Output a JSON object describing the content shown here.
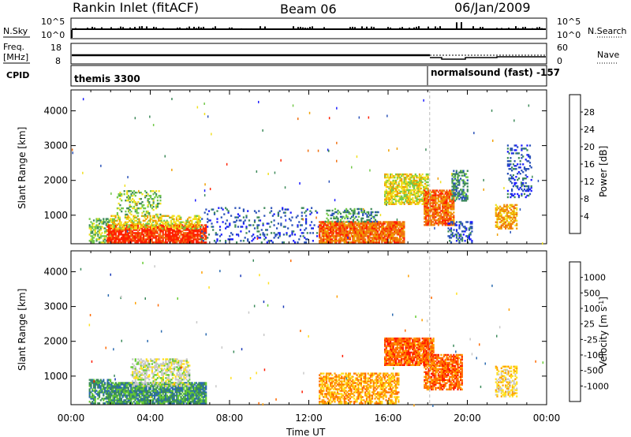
{
  "header": {
    "station": "Rankin Inlet (fitACF)",
    "beam": "Beam 06",
    "date": "06/Jan/2009"
  },
  "status_panels": {
    "nsky_label": "N.Sky",
    "nsearch_label": "N.Search",
    "count_top_tick": "10^5",
    "count_bottom_tick": "10^0",
    "freq_label_1": "Freq.",
    "freq_label_2": "[MHz]",
    "freq_top_tick": "18",
    "freq_bottom_tick": "8",
    "nave_label": "Nave",
    "nave_top_tick": "60",
    "nave_bottom_tick": "0",
    "cpid_label": "CPID",
    "cpid_segments": [
      {
        "name": "themis 3300",
        "start_hour": 0
      },
      {
        "name": "normalsound (fast) -157",
        "start_hour": 18.1
      }
    ]
  },
  "chart_data": [
    {
      "type": "heatmap",
      "panel": "power",
      "xlabel": "Time UT",
      "ylabel": "Slant Range [km]",
      "x_range_hours": [
        0,
        24
      ],
      "ylim": [
        180,
        4600
      ],
      "y_ticks": [
        1000,
        2000,
        3000,
        4000
      ],
      "colorbar_label": "Power [dB]",
      "colorbar_ticks": [
        "4",
        "8",
        "12",
        "16",
        "20",
        "24",
        "28"
      ],
      "colorbar_colors": [
        "#1a1aff",
        "#2a52b8",
        "#3e8a5a",
        "#73c94a",
        "#f0e020",
        "#f0a000",
        "#f07010",
        "#ff2000"
      ],
      "regions": [
        {
          "t0": 0.9,
          "t1": 2.0,
          "r0": 200,
          "r1": 900,
          "level": 3,
          "density": 0.55
        },
        {
          "t0": 1.8,
          "t1": 6.8,
          "r0": 200,
          "r1": 700,
          "level": 7,
          "density": 0.85
        },
        {
          "t0": 2.0,
          "t1": 6.5,
          "r0": 600,
          "r1": 1000,
          "level": 4,
          "density": 0.55
        },
        {
          "t0": 2.3,
          "t1": 4.5,
          "r0": 1000,
          "r1": 1700,
          "level": 3,
          "density": 0.3
        },
        {
          "t0": 6.5,
          "t1": 12.5,
          "r0": 200,
          "r1": 1200,
          "level": 1,
          "density": 0.12
        },
        {
          "t0": 12.5,
          "t1": 16.8,
          "r0": 200,
          "r1": 800,
          "level": 6,
          "density": 0.85
        },
        {
          "t0": 12.8,
          "t1": 15.5,
          "r0": 800,
          "r1": 1200,
          "level": 2,
          "density": 0.4
        },
        {
          "t0": 15.8,
          "t1": 18.0,
          "r0": 1300,
          "r1": 2200,
          "level": 4,
          "density": 0.7
        },
        {
          "t0": 17.8,
          "t1": 19.3,
          "r0": 700,
          "r1": 1700,
          "level": 6,
          "density": 0.8
        },
        {
          "t0": 19.2,
          "t1": 20.0,
          "r0": 1400,
          "r1": 2300,
          "level": 2,
          "density": 0.5
        },
        {
          "t0": 19.0,
          "t1": 20.2,
          "r0": 200,
          "r1": 800,
          "level": 1,
          "density": 0.35
        },
        {
          "t0": 21.4,
          "t1": 22.5,
          "r0": 600,
          "r1": 1300,
          "level": 5,
          "density": 0.6
        },
        {
          "t0": 22.0,
          "t1": 23.2,
          "r0": 1500,
          "r1": 3000,
          "level": 1,
          "density": 0.25
        }
      ]
    },
    {
      "type": "heatmap",
      "panel": "velocity",
      "xlabel": "Time UT",
      "ylabel": "Slant Range [km]",
      "x_range_hours": [
        0,
        24
      ],
      "x_ticks": [
        "00:00",
        "04:00",
        "08:00",
        "12:00",
        "16:00",
        "20:00",
        "00:00"
      ],
      "ylim": [
        180,
        4600
      ],
      "y_ticks": [
        1000,
        2000,
        3000,
        4000
      ],
      "colorbar_label": "Velocity [m s^-1]",
      "colorbar_ticks": [
        "1000",
        "500",
        "100",
        "25",
        "-25",
        "-100",
        "-500",
        "-1000"
      ],
      "colorbar_colors": [
        "#1a3ab8",
        "#2a6ab0",
        "#3a8a5a",
        "#66cc33",
        "#c8c8c8",
        "#ffe020",
        "#ffa000",
        "#ff6a00",
        "#ff1a00"
      ],
      "regions": [
        {
          "t0": 0.9,
          "t1": 2.0,
          "r0": 200,
          "r1": 900,
          "level": 2,
          "density": 0.6
        },
        {
          "t0": 1.8,
          "t1": 6.8,
          "r0": 200,
          "r1": 800,
          "level": 2,
          "density": 0.85
        },
        {
          "t0": 3.0,
          "t1": 6.0,
          "r0": 700,
          "r1": 1500,
          "level": 4,
          "density": 0.55
        },
        {
          "t0": 12.5,
          "t1": 16.5,
          "r0": 200,
          "r1": 1100,
          "level": 6,
          "density": 0.6
        },
        {
          "t0": 15.8,
          "t1": 18.3,
          "r0": 1300,
          "r1": 2100,
          "level": 7,
          "density": 0.85
        },
        {
          "t0": 17.8,
          "t1": 19.7,
          "r0": 600,
          "r1": 1600,
          "level": 7,
          "density": 0.75
        },
        {
          "t0": 21.4,
          "t1": 22.5,
          "r0": 400,
          "r1": 1300,
          "level": 5,
          "density": 0.5
        }
      ]
    }
  ]
}
